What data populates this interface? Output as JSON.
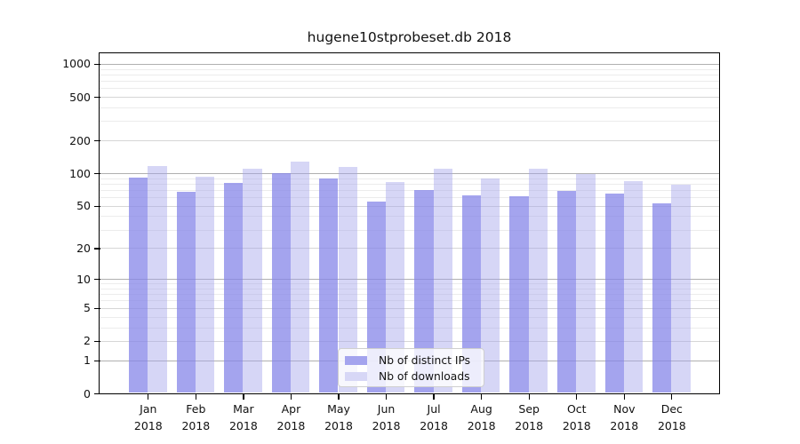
{
  "title": "hugene10stprobeset.db 2018",
  "chart_data": {
    "type": "bar",
    "title": "hugene10stprobeset.db 2018",
    "yscale": "log1p",
    "grid": true,
    "legend_position": "lower center",
    "xlabel": "",
    "ylabel": "",
    "ylim": [
      0,
      1250
    ],
    "categories": [
      "Jan",
      "Feb",
      "Mar",
      "Apr",
      "May",
      "Jun",
      "Jul",
      "Aug",
      "Sep",
      "Oct",
      "Nov",
      "Dec"
    ],
    "x_year_label": "2018",
    "y_ticks": [
      0,
      1,
      2,
      5,
      10,
      20,
      50,
      100,
      200,
      500,
      1000
    ],
    "y_minor_ticks": [
      3,
      4,
      6,
      7,
      8,
      9,
      30,
      40,
      60,
      70,
      80,
      90,
      300,
      400,
      600,
      700,
      800,
      900
    ],
    "series": [
      {
        "name": "Nb of distinct IPs",
        "values": [
          91,
          67,
          81,
          100,
          89,
          55,
          70,
          62,
          61,
          69,
          65,
          53
        ],
        "fill": "#8585e8",
        "alpha": 0.75,
        "legend_swatch": "#a4a4ee"
      },
      {
        "name": "Nb of downloads",
        "values": [
          117,
          92,
          111,
          127,
          114,
          83,
          110,
          89,
          111,
          99,
          85,
          78
        ],
        "fill": "#a4a4eb",
        "alpha": 0.45,
        "legend_swatch": "#d7d7f6"
      }
    ]
  },
  "legend": {
    "items": [
      {
        "label": "Nb of distinct IPs"
      },
      {
        "label": "Nb of downloads"
      }
    ]
  },
  "colors": {
    "bar_distinct_ips": "#a4a4ee",
    "bar_downloads": "#d7d7f6",
    "grid_major_power10": "#b0b0b0",
    "grid_major": "#d6d6d6",
    "grid_minor": "#ececec",
    "axis": "#000000",
    "background": "#ffffff"
  }
}
